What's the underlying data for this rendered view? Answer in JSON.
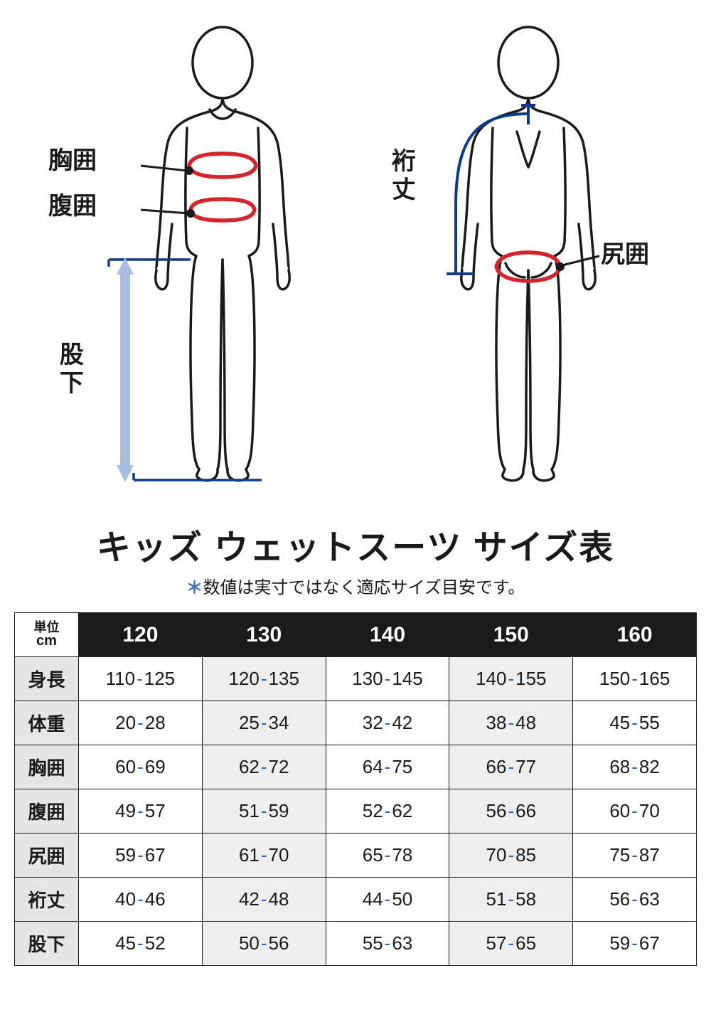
{
  "colors": {
    "stroke": "#1a1a1a",
    "red": "#d4252d",
    "blue_dark": "#0a3c8a",
    "blue_arrow": "#a6bce0",
    "header_bg": "#1a1a1a",
    "header_fg": "#ffffff",
    "rowhead_bg": "#e6e6e6",
    "alt_col_bg": "#eeeeee",
    "dash": "#2a62c0",
    "asterisk": "#3a6fc7"
  },
  "labels": {
    "chest": "胸囲",
    "waist": "腹囲",
    "inseam": "股下",
    "sleeve": "裄丈",
    "hip": "尻囲"
  },
  "title": "キッズ ウェットスーツ サイズ表",
  "subtitle": "数値は実寸ではなく適応サイズ目安です。",
  "table": {
    "corner_top": "単位",
    "corner_bottom": "cm",
    "sizes": [
      "120",
      "130",
      "140",
      "150",
      "160"
    ],
    "rows": [
      {
        "label": "身長",
        "values": [
          "110-125",
          "120-135",
          "130-145",
          "140-155",
          "150-165"
        ]
      },
      {
        "label": "体重",
        "values": [
          "20-28",
          "25-34",
          "32-42",
          "38-48",
          "45-55"
        ]
      },
      {
        "label": "胸囲",
        "values": [
          "60-69",
          "62-72",
          "64-75",
          "66-77",
          "68-82"
        ]
      },
      {
        "label": "腹囲",
        "values": [
          "49-57",
          "51-59",
          "52-62",
          "56-66",
          "60-70"
        ]
      },
      {
        "label": "尻囲",
        "values": [
          "59-67",
          "61-70",
          "65-78",
          "70-85",
          "75-87"
        ]
      },
      {
        "label": "裄丈",
        "values": [
          "40-46",
          "42-48",
          "44-50",
          "51-58",
          "56-63"
        ]
      },
      {
        "label": "股下",
        "values": [
          "45-52",
          "50-56",
          "55-63",
          "57-65",
          "59-67"
        ]
      }
    ]
  }
}
